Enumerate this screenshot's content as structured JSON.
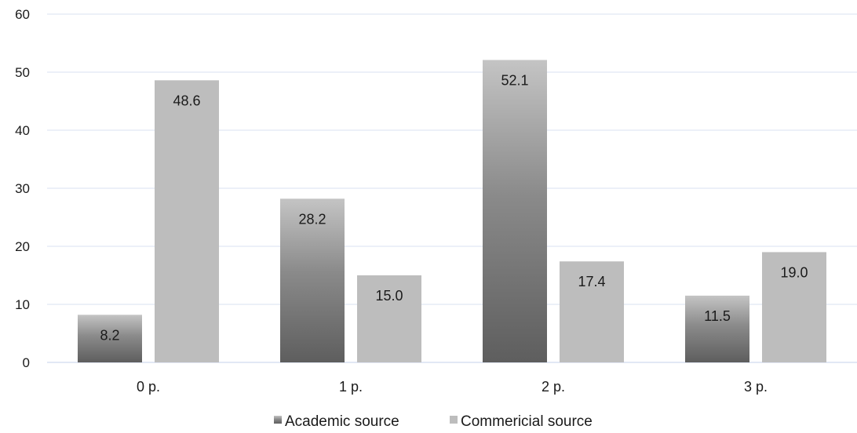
{
  "chart_data": {
    "type": "bar",
    "categories": [
      "0 p.",
      "1 p.",
      "2 p.",
      "3 p."
    ],
    "series": [
      {
        "name": "Academic source",
        "values": [
          8.2,
          28.2,
          52.1,
          11.5
        ],
        "color_top": "#c4c4c4",
        "color_bottom": "#5e5e5e"
      },
      {
        "name": "Commericial source",
        "values": [
          48.6,
          15.0,
          17.4,
          19.0
        ],
        "color": "#bdbdbd"
      }
    ],
    "data_labels": [
      [
        "8.2",
        "28.2",
        "52.1",
        "11.5"
      ],
      [
        "48.6",
        "15.0",
        "17.4",
        "19.0"
      ]
    ],
    "ylim": [
      0,
      60
    ],
    "yticks": [
      0,
      10,
      20,
      30,
      40,
      50,
      60
    ],
    "grid": true,
    "grid_color": "#d9e1f2",
    "legend_position": "bottom",
    "title": "",
    "xlabel": "",
    "ylabel": ""
  }
}
